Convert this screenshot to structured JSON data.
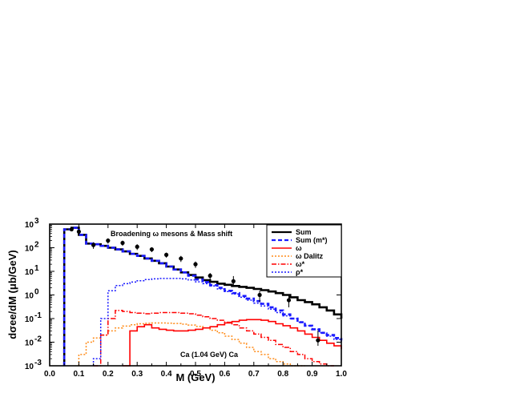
{
  "chart_data": {
    "type": "line",
    "annotation_top": "Broadening ω mesons & Mass shift",
    "annotation_bottom": "Ca (1.04 GeV) Ca",
    "xlabel": "M (GeV)",
    "ylabel": "dσee/dM (μb/GeV)",
    "xlim": [
      0.0,
      1.0
    ],
    "ylim": [
      0.001,
      1000
    ],
    "yscale": "log",
    "x_ticks": [
      "0.0",
      "0.1",
      "0.2",
      "0.3",
      "0.4",
      "0.5",
      "0.6",
      "0.7",
      "0.8",
      "0.9",
      "1.0"
    ],
    "y_ticks": [
      {
        "base": "10",
        "exp": "3",
        "value": 1000
      },
      {
        "base": "10",
        "exp": "2",
        "value": 100
      },
      {
        "base": "10",
        "exp": "1",
        "value": 10
      },
      {
        "base": "10",
        "exp": "0",
        "value": 1
      },
      {
        "base": "10",
        "exp": "-1",
        "value": 0.1
      },
      {
        "base": "10",
        "exp": "-2",
        "value": 0.01
      },
      {
        "base": "10",
        "exp": "-3",
        "value": 0.001
      }
    ],
    "legend_position": "top-right",
    "series": [
      {
        "name": "Sum",
        "color": "#000000",
        "style": "solid-thick",
        "x": [
          0.05,
          0.075,
          0.1,
          0.125,
          0.15,
          0.175,
          0.2,
          0.225,
          0.25,
          0.275,
          0.3,
          0.325,
          0.35,
          0.375,
          0.4,
          0.425,
          0.45,
          0.475,
          0.5,
          0.525,
          0.55,
          0.575,
          0.6,
          0.625,
          0.65,
          0.675,
          0.7,
          0.725,
          0.75,
          0.775,
          0.8,
          0.825,
          0.85,
          0.875,
          0.9,
          0.925,
          0.95,
          0.975,
          1.0
        ],
        "y": [
          600,
          700,
          350,
          150,
          140,
          120,
          100,
          85,
          70,
          55,
          45,
          35,
          28,
          22,
          16,
          12,
          9,
          7,
          5.5,
          4.2,
          3.6,
          3.0,
          2.7,
          2.4,
          2.2,
          2.0,
          1.8,
          1.6,
          1.4,
          1.2,
          1.0,
          0.8,
          0.6,
          0.5,
          0.4,
          0.3,
          0.22,
          0.15,
          0.1
        ]
      },
      {
        "name": "Sum (m*)",
        "color": "#1a1aff",
        "style": "dashed-thick",
        "x": [
          0.05,
          0.075,
          0.1,
          0.125,
          0.15,
          0.175,
          0.2,
          0.225,
          0.25,
          0.275,
          0.3,
          0.325,
          0.35,
          0.375,
          0.4,
          0.425,
          0.45,
          0.475,
          0.5,
          0.525,
          0.55,
          0.575,
          0.6,
          0.625,
          0.65,
          0.675,
          0.7,
          0.725,
          0.75,
          0.775,
          0.8,
          0.825,
          0.85,
          0.875,
          0.9,
          0.925,
          0.95,
          0.975,
          1.0
        ],
        "y": [
          600,
          700,
          350,
          150,
          140,
          120,
          100,
          85,
          70,
          55,
          45,
          35,
          28,
          22,
          16,
          12,
          9,
          6.5,
          4.5,
          3.5,
          2.6,
          2.0,
          1.5,
          1.2,
          0.9,
          0.7,
          0.55,
          0.42,
          0.3,
          0.22,
          0.15,
          0.1,
          0.07,
          0.05,
          0.035,
          0.025,
          0.02,
          0.015,
          0.012
        ]
      },
      {
        "name": "ω",
        "color": "#ff0000",
        "style": "solid",
        "x": [
          0.25,
          0.275,
          0.3,
          0.325,
          0.35,
          0.375,
          0.4,
          0.425,
          0.45,
          0.475,
          0.5,
          0.525,
          0.55,
          0.575,
          0.6,
          0.625,
          0.65,
          0.675,
          0.7,
          0.725,
          0.75,
          0.775,
          0.8,
          0.825,
          0.85,
          0.875,
          0.9,
          0.925,
          0.95,
          0.975,
          1.0
        ],
        "y": [
          0.001,
          0.03,
          0.045,
          0.055,
          0.04,
          0.035,
          0.032,
          0.03,
          0.03,
          0.032,
          0.035,
          0.04,
          0.045,
          0.055,
          0.065,
          0.075,
          0.085,
          0.09,
          0.09,
          0.085,
          0.075,
          0.06,
          0.05,
          0.04,
          0.03,
          0.022,
          0.016,
          0.012,
          0.009,
          0.007,
          0.005
        ]
      },
      {
        "name": "ω Dalitz",
        "color": "#ff8c1a",
        "style": "dotted",
        "x": [
          0.1,
          0.125,
          0.15,
          0.175,
          0.2,
          0.225,
          0.25,
          0.275,
          0.3,
          0.325,
          0.35,
          0.375,
          0.4,
          0.425,
          0.45,
          0.475,
          0.5,
          0.525,
          0.55,
          0.575,
          0.6,
          0.625,
          0.65,
          0.675,
          0.7,
          0.725,
          0.75,
          0.775,
          0.8,
          0.825,
          0.85
        ],
        "y": [
          0.003,
          0.01,
          0.015,
          0.02,
          0.03,
          0.04,
          0.048,
          0.055,
          0.06,
          0.063,
          0.065,
          0.065,
          0.064,
          0.062,
          0.058,
          0.053,
          0.047,
          0.04,
          0.032,
          0.025,
          0.018,
          0.013,
          0.009,
          0.006,
          0.004,
          0.003,
          0.002,
          0.0015,
          0.0012,
          0.001,
          0.001
        ]
      },
      {
        "name": "ω*",
        "color": "#ff0000",
        "style": "dashdot",
        "x": [
          0.15,
          0.175,
          0.2,
          0.225,
          0.25,
          0.275,
          0.3,
          0.325,
          0.35,
          0.375,
          0.4,
          0.425,
          0.45,
          0.475,
          0.5,
          0.525,
          0.55,
          0.575,
          0.6,
          0.625,
          0.65,
          0.675,
          0.7,
          0.725,
          0.75,
          0.775,
          0.8,
          0.825,
          0.85,
          0.875,
          0.9,
          0.925,
          0.95
        ],
        "y": [
          0.001,
          0.02,
          0.1,
          0.22,
          0.2,
          0.18,
          0.17,
          0.16,
          0.17,
          0.18,
          0.18,
          0.18,
          0.17,
          0.16,
          0.14,
          0.12,
          0.1,
          0.085,
          0.07,
          0.055,
          0.04,
          0.03,
          0.022,
          0.016,
          0.012,
          0.008,
          0.006,
          0.004,
          0.003,
          0.002,
          0.0015,
          0.0012,
          0.001
        ]
      },
      {
        "name": "ρ*",
        "color": "#1a1aff",
        "style": "dotted",
        "x": [
          0.15,
          0.175,
          0.2,
          0.225,
          0.25,
          0.275,
          0.3,
          0.325,
          0.35,
          0.375,
          0.4,
          0.425,
          0.45,
          0.475,
          0.5,
          0.525,
          0.55,
          0.575,
          0.6,
          0.625,
          0.65,
          0.675,
          0.7,
          0.725,
          0.75,
          0.775,
          0.8,
          0.825,
          0.85,
          0.875,
          0.9,
          0.925,
          0.95,
          0.975,
          1.0
        ],
        "y": [
          0.002,
          0.1,
          1.5,
          2.5,
          3.0,
          3.5,
          4.0,
          4.5,
          4.8,
          5.0,
          5.0,
          5.0,
          4.8,
          4.3,
          3.6,
          3.0,
          2.4,
          1.8,
          1.4,
          1.1,
          0.8,
          0.6,
          0.45,
          0.34,
          0.25,
          0.18,
          0.13,
          0.1,
          0.07,
          0.05,
          0.035,
          0.025,
          0.018,
          0.013,
          0.01
        ]
      }
    ],
    "data_points": {
      "x": [
        0.075,
        0.1,
        0.15,
        0.2,
        0.25,
        0.3,
        0.35,
        0.4,
        0.45,
        0.5,
        0.55,
        0.63,
        0.72,
        0.82,
        0.92
      ],
      "y": [
        600,
        480,
        130,
        200,
        160,
        110,
        85,
        50,
        35,
        20,
        6.5,
        3.8,
        1.0,
        0.6,
        0.012
      ],
      "err_low": [
        100,
        80,
        40,
        50,
        40,
        30,
        20,
        12,
        10,
        6,
        2,
        1.5,
        0.5,
        0.3,
        0.005
      ],
      "err_high": [
        100,
        80,
        40,
        50,
        40,
        30,
        20,
        12,
        10,
        6,
        2,
        2.5,
        0.5,
        0.4,
        0.02
      ]
    }
  }
}
